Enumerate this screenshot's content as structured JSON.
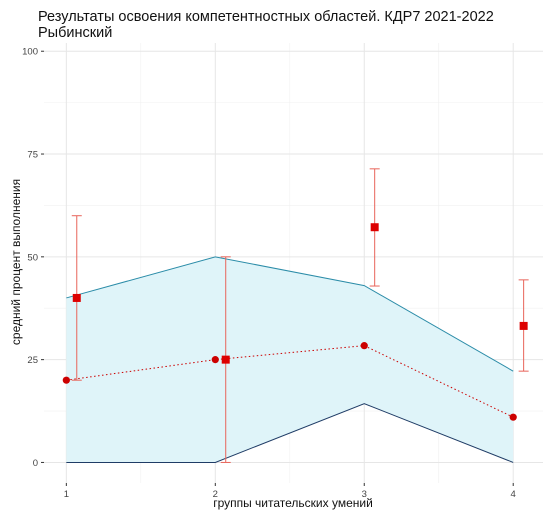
{
  "title": "Результаты освоения компетентностных областей. КДР7 2021-2022\nРыбинский",
  "chart_data": {
    "type": "line",
    "title": "Результаты освоения компетентностных областей. КДР7 2021-2022 Рыбинский",
    "xlabel": "группы читательских умений",
    "ylabel": "средний процент выполнения",
    "x_ticks": [
      "1",
      "2",
      "3",
      "4"
    ],
    "y_ticks": [
      "0",
      "25",
      "50",
      "75",
      "100"
    ],
    "xlim": [
      0.85,
      4.2
    ],
    "ylim": [
      -5,
      102
    ],
    "grid": true,
    "band": {
      "x": [
        1,
        2,
        3,
        4
      ],
      "lower": [
        0,
        0,
        14.3,
        0
      ],
      "upper": [
        40,
        50,
        43,
        22.2
      ],
      "fill": "#dff4f9",
      "upper_line": "#2b8ca8",
      "lower_line": "#1f3c66"
    },
    "series": [
      {
        "marker": "circle",
        "style": "dotted",
        "color": "#cc0000",
        "x": [
          1,
          2,
          3,
          4
        ],
        "values": [
          20,
          25,
          28.4,
          11
        ]
      },
      {
        "marker": "square",
        "style": "errorbar",
        "color": "#dd0000",
        "bar_color": "#e8645a",
        "x": [
          1,
          2,
          3,
          4
        ],
        "values": [
          40,
          25,
          57.2,
          33.2
        ],
        "err_low": [
          20,
          0,
          42.9,
          22.2
        ],
        "err_high": [
          60,
          50,
          71.4,
          44.4
        ]
      }
    ]
  }
}
